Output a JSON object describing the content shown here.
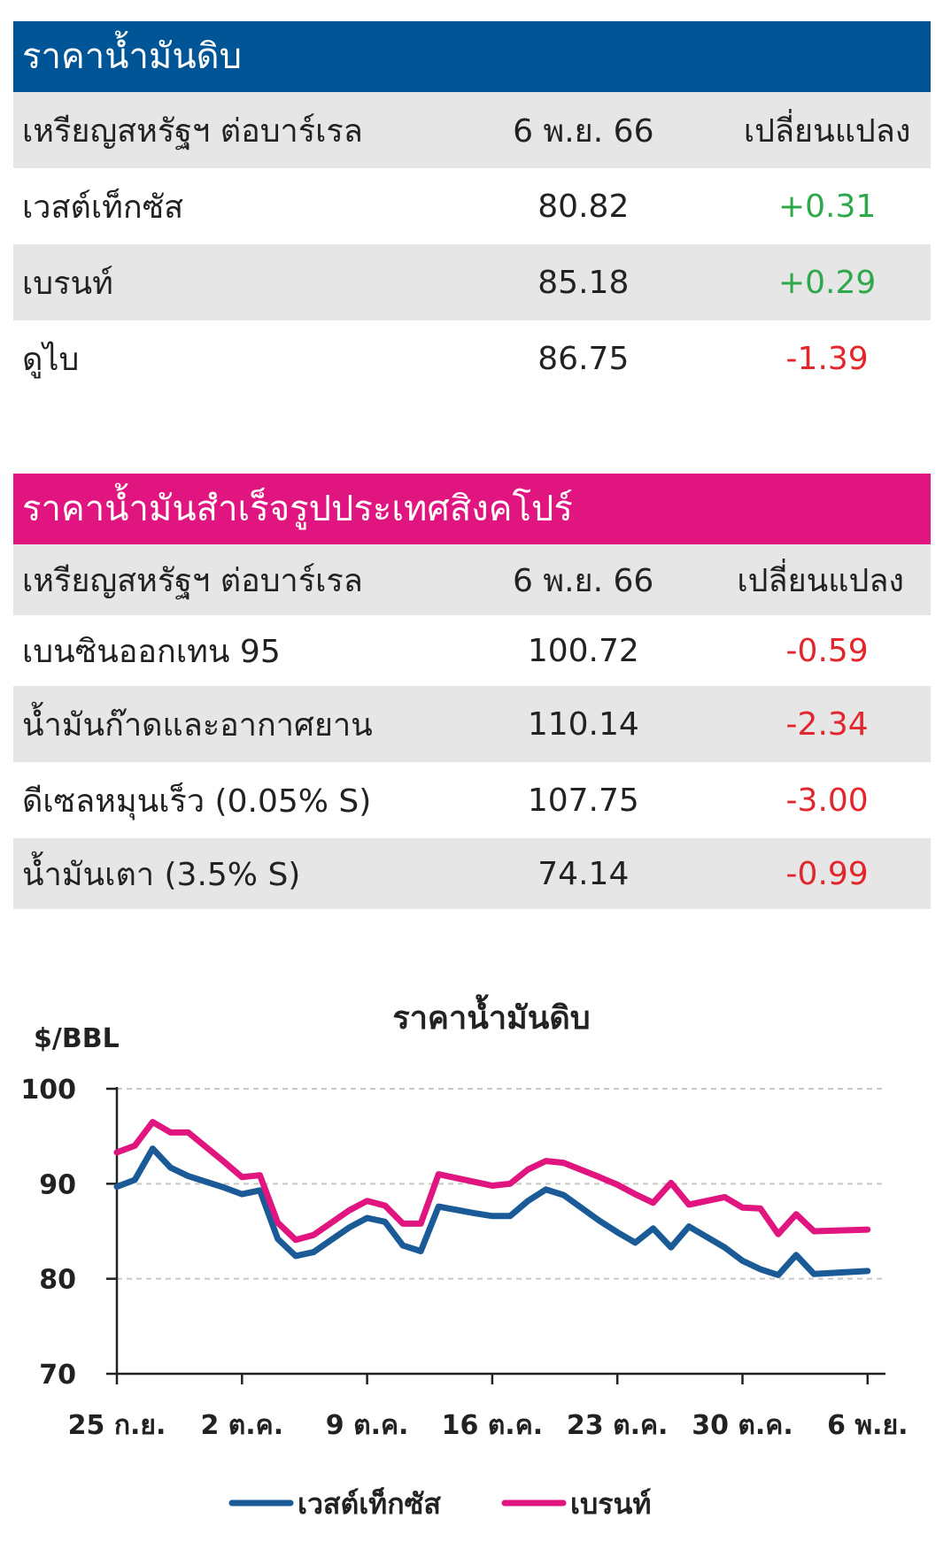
{
  "crude_table": {
    "title": "ราคาน้ำมันดิบ",
    "header_color": "#005596",
    "col1": "เหรียญสหรัฐฯ ต่อบาร์เรล",
    "col2": "6 พ.ย. 66",
    "col3": "เปลี่ยนแปลง",
    "rows": [
      {
        "name": "เวสต์เท็กซัส",
        "price": "80.82",
        "change": "+0.31"
      },
      {
        "name": "เบรนท์",
        "price": "85.18",
        "change": "+0.29"
      },
      {
        "name": "ดูไบ",
        "price": "86.75",
        "change": "-1.39"
      }
    ]
  },
  "product_table": {
    "title": "ราคาน้ำมันสำเร็จรูปประเทศสิงคโปร์",
    "header_color": "#e0157f",
    "col1": "เหรียญสหรัฐฯ ต่อบาร์เรล",
    "col2": "6 พ.ย. 66",
    "col3": "เปลี่ยนแปลง",
    "rows": [
      {
        "name": "เบนซินออกเทน 95",
        "price": "100.72",
        "change": "-0.59"
      },
      {
        "name": "น้ำมันก๊าดและอากาศยาน",
        "price": "110.14",
        "change": "-2.34"
      },
      {
        "name": "ดีเซลหมุนเร็ว (0.05% S)",
        "price": "107.75",
        "change": "-3.00"
      },
      {
        "name": "น้ำมันเตา (3.5% S)",
        "price": "74.14",
        "change": "-0.99"
      }
    ]
  },
  "colors": {
    "positive": "#2ea84a",
    "negative": "#e3262c"
  },
  "chart_data": {
    "type": "line",
    "title": "ราคาน้ำมันดิบ",
    "ylabel": "$/BBL",
    "ylim": [
      70,
      100
    ],
    "yticks": [
      70,
      80,
      90,
      100
    ],
    "xlim": [
      0,
      43
    ],
    "xticks": [
      {
        "x": 0,
        "label": "25 ก.ย."
      },
      {
        "x": 7,
        "label": "2 ต.ค."
      },
      {
        "x": 14,
        "label": "9 ต.ค."
      },
      {
        "x": 21,
        "label": "16 ต.ค."
      },
      {
        "x": 28,
        "label": "23 ต.ค."
      },
      {
        "x": 35,
        "label": "30 ต.ค."
      },
      {
        "x": 42,
        "label": "6 พ.ย."
      }
    ],
    "grid": "horizontal dashed",
    "legend": "bottom",
    "series": [
      {
        "name": "เวสต์เท็กซัส",
        "color": "#1a5a96",
        "x": [
          0,
          1,
          2,
          3,
          4,
          6,
          7,
          8,
          9,
          10,
          11,
          13,
          14,
          15,
          16,
          17,
          18,
          20,
          21,
          22,
          23,
          24,
          25,
          27,
          28,
          29,
          30,
          31,
          32,
          34,
          35,
          36,
          37,
          38,
          39,
          42
        ],
        "values": [
          89.7,
          90.4,
          93.7,
          91.7,
          90.8,
          89.6,
          88.9,
          89.3,
          84.2,
          82.4,
          82.8,
          85.4,
          86.4,
          86.0,
          83.5,
          82.9,
          87.6,
          86.9,
          86.6,
          86.6,
          88.2,
          89.4,
          88.8,
          86.1,
          84.9,
          83.8,
          85.3,
          83.3,
          85.5,
          83.3,
          81.9,
          81.0,
          80.4,
          82.5,
          80.5,
          80.82
        ]
      },
      {
        "name": "เบรนท์",
        "color": "#e0157f",
        "x": [
          0,
          1,
          2,
          3,
          4,
          6,
          7,
          8,
          9,
          10,
          11,
          13,
          14,
          15,
          16,
          17,
          18,
          20,
          21,
          22,
          23,
          24,
          25,
          27,
          28,
          29,
          30,
          31,
          32,
          34,
          35,
          36,
          37,
          38,
          39,
          42
        ],
        "values": [
          93.3,
          94.0,
          96.5,
          95.4,
          95.4,
          92.3,
          90.7,
          90.9,
          85.9,
          84.1,
          84.6,
          87.2,
          88.2,
          87.7,
          85.8,
          85.8,
          91.0,
          90.2,
          89.8,
          90.0,
          91.5,
          92.4,
          92.2,
          90.7,
          89.9,
          88.9,
          88.0,
          90.1,
          87.8,
          88.6,
          87.5,
          87.4,
          84.7,
          86.8,
          85.0,
          85.18
        ]
      }
    ]
  }
}
